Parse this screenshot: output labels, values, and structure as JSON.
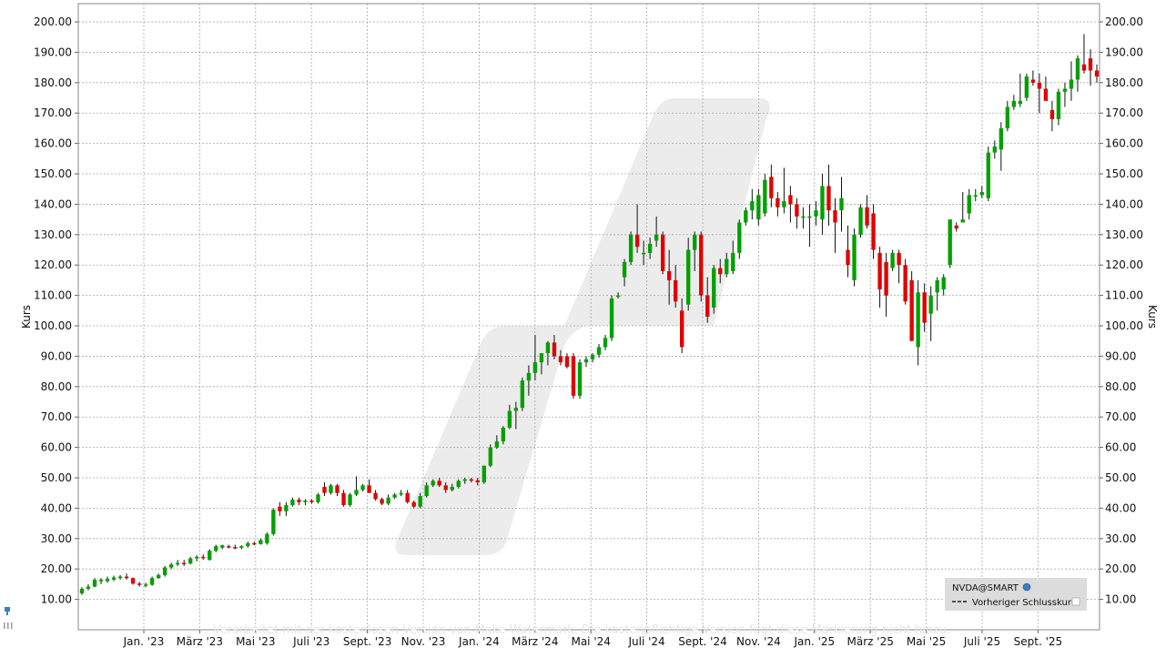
{
  "chart_data": {
    "type": "candlestick",
    "ylabel_left": "Kurs",
    "ylabel_right": "Kurs",
    "ylim": [
      0,
      206
    ],
    "grid": true,
    "y_ticks": [
      "10.00",
      "20.00",
      "30.00",
      "40.00",
      "50.00",
      "60.00",
      "70.00",
      "80.00",
      "90.00",
      "100.00",
      "110.00",
      "120.00",
      "130.00",
      "140.00",
      "150.00",
      "160.00",
      "170.00",
      "180.00",
      "190.00",
      "200.00"
    ],
    "x_ticks": [
      "Jan. '23",
      "März '23",
      "Mai '23",
      "Juli '23",
      "Sept. '23",
      "Nov. '23",
      "Jan. '24",
      "März '24",
      "Mai '24",
      "Juli '24",
      "Sept. '24",
      "Nov. '24",
      "Jan. '25",
      "März '25",
      "Mai '25",
      "Juli '25",
      "Sept. '25"
    ],
    "up_color": "#00a000",
    "down_color": "#e00000",
    "legend": {
      "position": "bottom-right",
      "symbol": "NVDA@SMART",
      "previous_close_label": "Vorheriger Schlusskurs"
    },
    "watermark": "Verarbeitet mit der kostenlosen Version von Make Watermark. Die kostenpflichtige Version fügt diese Markierung nicht hinzu.",
    "candles": [
      {
        "o": 12.0,
        "h": 14.0,
        "l": 11.5,
        "c": 13.5
      },
      {
        "o": 13.5,
        "h": 15.0,
        "l": 13.0,
        "c": 14.2
      },
      {
        "o": 14.2,
        "h": 17.0,
        "l": 14.0,
        "c": 16.5
      },
      {
        "o": 16.0,
        "h": 17.0,
        "l": 15.0,
        "c": 16.5
      },
      {
        "o": 16.0,
        "h": 17.5,
        "l": 15.5,
        "c": 16.8
      },
      {
        "o": 16.5,
        "h": 17.8,
        "l": 16.0,
        "c": 17.2
      },
      {
        "o": 17.0,
        "h": 18.0,
        "l": 16.5,
        "c": 17.5
      },
      {
        "o": 17.5,
        "h": 18.5,
        "l": 16.5,
        "c": 17.0
      },
      {
        "o": 17.0,
        "h": 17.2,
        "l": 14.8,
        "c": 15.2
      },
      {
        "o": 15.2,
        "h": 15.8,
        "l": 14.2,
        "c": 14.8
      },
      {
        "o": 14.8,
        "h": 15.5,
        "l": 14.0,
        "c": 14.9
      },
      {
        "o": 14.8,
        "h": 17.5,
        "l": 14.5,
        "c": 17.0
      },
      {
        "o": 17.0,
        "h": 18.5,
        "l": 16.8,
        "c": 18.0
      },
      {
        "o": 18.0,
        "h": 21.0,
        "l": 17.5,
        "c": 20.5
      },
      {
        "o": 20.5,
        "h": 22.0,
        "l": 20.0,
        "c": 21.5
      },
      {
        "o": 21.5,
        "h": 23.0,
        "l": 21.0,
        "c": 22.0
      },
      {
        "o": 22.0,
        "h": 23.0,
        "l": 21.0,
        "c": 21.8
      },
      {
        "o": 21.8,
        "h": 24.0,
        "l": 21.5,
        "c": 23.5
      },
      {
        "o": 23.5,
        "h": 24.5,
        "l": 22.5,
        "c": 24.0
      },
      {
        "o": 24.0,
        "h": 24.8,
        "l": 23.0,
        "c": 23.8
      },
      {
        "o": 23.0,
        "h": 26.5,
        "l": 22.8,
        "c": 26.0
      },
      {
        "o": 26.0,
        "h": 28.0,
        "l": 25.5,
        "c": 27.5
      },
      {
        "o": 27.0,
        "h": 28.0,
        "l": 26.5,
        "c": 27.8
      },
      {
        "o": 27.5,
        "h": 28.0,
        "l": 26.8,
        "c": 27.2
      },
      {
        "o": 27.2,
        "h": 28.0,
        "l": 26.5,
        "c": 27.0
      },
      {
        "o": 27.0,
        "h": 27.8,
        "l": 26.5,
        "c": 27.5
      },
      {
        "o": 27.5,
        "h": 29.0,
        "l": 27.0,
        "c": 28.5
      },
      {
        "o": 28.5,
        "h": 29.0,
        "l": 27.8,
        "c": 28.2
      },
      {
        "o": 28.2,
        "h": 30.0,
        "l": 28.0,
        "c": 29.5
      },
      {
        "o": 28.5,
        "h": 32.0,
        "l": 28.0,
        "c": 31.5
      },
      {
        "o": 31.5,
        "h": 40.0,
        "l": 31.0,
        "c": 39.5
      },
      {
        "o": 40.5,
        "h": 42.0,
        "l": 37.5,
        "c": 39.0
      },
      {
        "o": 39.0,
        "h": 42.0,
        "l": 37.5,
        "c": 41.0
      },
      {
        "o": 41.0,
        "h": 43.5,
        "l": 40.5,
        "c": 42.8
      },
      {
        "o": 42.8,
        "h": 43.5,
        "l": 41.0,
        "c": 42.0
      },
      {
        "o": 42.0,
        "h": 43.0,
        "l": 41.0,
        "c": 42.5
      },
      {
        "o": 42.5,
        "h": 43.0,
        "l": 41.5,
        "c": 42.0
      },
      {
        "o": 42.0,
        "h": 45.0,
        "l": 41.5,
        "c": 44.5
      },
      {
        "o": 47.0,
        "h": 48.5,
        "l": 44.0,
        "c": 45.0
      },
      {
        "o": 45.0,
        "h": 48.0,
        "l": 44.5,
        "c": 47.5
      },
      {
        "o": 47.5,
        "h": 48.0,
        "l": 44.0,
        "c": 45.0
      },
      {
        "o": 45.0,
        "h": 46.0,
        "l": 40.5,
        "c": 41.0
      },
      {
        "o": 41.0,
        "h": 45.0,
        "l": 40.5,
        "c": 44.5
      },
      {
        "o": 44.5,
        "h": 50.5,
        "l": 44.0,
        "c": 46.0
      },
      {
        "o": 46.0,
        "h": 48.0,
        "l": 45.5,
        "c": 47.5
      },
      {
        "o": 47.5,
        "h": 49.5,
        "l": 46.0,
        "c": 45.0
      },
      {
        "o": 45.0,
        "h": 46.0,
        "l": 42.5,
        "c": 43.0
      },
      {
        "o": 43.0,
        "h": 43.5,
        "l": 41.0,
        "c": 41.5
      },
      {
        "o": 41.5,
        "h": 44.5,
        "l": 41.0,
        "c": 43.5
      },
      {
        "o": 43.5,
        "h": 45.0,
        "l": 43.0,
        "c": 44.5
      },
      {
        "o": 44.5,
        "h": 46.0,
        "l": 44.0,
        "c": 45.0
      },
      {
        "o": 45.0,
        "h": 46.0,
        "l": 41.5,
        "c": 42.0
      },
      {
        "o": 42.0,
        "h": 42.5,
        "l": 40.0,
        "c": 40.5
      },
      {
        "o": 40.5,
        "h": 45.0,
        "l": 40.0,
        "c": 44.0
      },
      {
        "o": 44.0,
        "h": 48.5,
        "l": 43.5,
        "c": 47.5
      },
      {
        "o": 47.5,
        "h": 49.5,
        "l": 47.0,
        "c": 49.0
      },
      {
        "o": 49.0,
        "h": 50.0,
        "l": 47.0,
        "c": 47.5
      },
      {
        "o": 47.5,
        "h": 48.5,
        "l": 45.0,
        "c": 46.0
      },
      {
        "o": 46.0,
        "h": 48.0,
        "l": 45.5,
        "c": 47.0
      },
      {
        "o": 47.0,
        "h": 49.5,
        "l": 46.5,
        "c": 49.0
      },
      {
        "o": 49.0,
        "h": 50.0,
        "l": 48.0,
        "c": 49.5
      },
      {
        "o": 49.5,
        "h": 50.0,
        "l": 48.5,
        "c": 49.2
      },
      {
        "o": 49.2,
        "h": 50.0,
        "l": 47.5,
        "c": 48.5
      },
      {
        "o": 48.5,
        "h": 54.0,
        "l": 48.0,
        "c": 54.0
      },
      {
        "o": 54.0,
        "h": 61.0,
        "l": 53.5,
        "c": 60.0
      },
      {
        "o": 60.0,
        "h": 64.0,
        "l": 59.5,
        "c": 62.0
      },
      {
        "o": 62.0,
        "h": 67.0,
        "l": 61.0,
        "c": 66.5
      },
      {
        "o": 66.5,
        "h": 74.0,
        "l": 66.0,
        "c": 72.0
      },
      {
        "o": 72.0,
        "h": 75.0,
        "l": 66.0,
        "c": 73.0
      },
      {
        "o": 73.0,
        "h": 83.0,
        "l": 72.0,
        "c": 82.0
      },
      {
        "o": 82.0,
        "h": 87.0,
        "l": 77.0,
        "c": 84.5
      },
      {
        "o": 84.5,
        "h": 97.0,
        "l": 82.0,
        "c": 88.0
      },
      {
        "o": 88.0,
        "h": 90.0,
        "l": 84.0,
        "c": 91.0
      },
      {
        "o": 91.0,
        "h": 95.0,
        "l": 87.0,
        "c": 94.5
      },
      {
        "o": 94.5,
        "h": 97.0,
        "l": 89.0,
        "c": 90.0
      },
      {
        "o": 90.0,
        "h": 92.0,
        "l": 87.0,
        "c": 88.0
      },
      {
        "o": 90.0,
        "h": 91.0,
        "l": 86.0,
        "c": 86.5
      },
      {
        "o": 90.0,
        "h": 91.0,
        "l": 76.0,
        "c": 77.0
      },
      {
        "o": 77.0,
        "h": 89.0,
        "l": 76.0,
        "c": 88.0
      },
      {
        "o": 88.0,
        "h": 90.0,
        "l": 86.5,
        "c": 89.0
      },
      {
        "o": 89.0,
        "h": 91.0,
        "l": 88.0,
        "c": 90.5
      },
      {
        "o": 90.5,
        "h": 94.0,
        "l": 89.5,
        "c": 93.0
      },
      {
        "o": 93.0,
        "h": 97.0,
        "l": 92.0,
        "c": 96.0
      },
      {
        "o": 96.0,
        "h": 110.0,
        "l": 95.0,
        "c": 109.0
      },
      {
        "o": 110.0,
        "h": 111.0,
        "l": 109.0,
        "c": 110.0
      },
      {
        "o": 116.0,
        "h": 122.0,
        "l": 113.0,
        "c": 121.0
      },
      {
        "o": 121.0,
        "h": 131.0,
        "l": 120.0,
        "c": 130.0
      },
      {
        "o": 130.0,
        "h": 140.0,
        "l": 124.0,
        "c": 126.0
      },
      {
        "o": 124.0,
        "h": 128.0,
        "l": 120.0,
        "c": 124.0
      },
      {
        "o": 124.0,
        "h": 129.0,
        "l": 122.0,
        "c": 127.0
      },
      {
        "o": 128.0,
        "h": 136.0,
        "l": 126.0,
        "c": 130.0
      },
      {
        "o": 130.0,
        "h": 131.0,
        "l": 117.0,
        "c": 118.0
      },
      {
        "o": 118.0,
        "h": 125.0,
        "l": 107.0,
        "c": 115.0
      },
      {
        "o": 115.0,
        "h": 120.0,
        "l": 106.0,
        "c": 108.0
      },
      {
        "o": 105.0,
        "h": 109.0,
        "l": 91.0,
        "c": 93.0
      },
      {
        "o": 107.0,
        "h": 129.0,
        "l": 105.0,
        "c": 125.0
      },
      {
        "o": 125.0,
        "h": 131.0,
        "l": 118.0,
        "c": 130.0
      },
      {
        "o": 130.0,
        "h": 131.0,
        "l": 108.0,
        "c": 110.0
      },
      {
        "o": 110.0,
        "h": 116.0,
        "l": 101.0,
        "c": 103.0
      },
      {
        "o": 106.0,
        "h": 120.0,
        "l": 104.0,
        "c": 119.0
      },
      {
        "o": 119.0,
        "h": 122.0,
        "l": 114.0,
        "c": 117.0
      },
      {
        "o": 117.0,
        "h": 124.0,
        "l": 116.0,
        "c": 122.0
      },
      {
        "o": 118.0,
        "h": 128.0,
        "l": 117.0,
        "c": 124.0
      },
      {
        "o": 124.0,
        "h": 135.0,
        "l": 122.0,
        "c": 134.0
      },
      {
        "o": 134.0,
        "h": 139.0,
        "l": 133.0,
        "c": 138.0
      },
      {
        "o": 138.0,
        "h": 145.0,
        "l": 135.0,
        "c": 141.0
      },
      {
        "o": 135.0,
        "h": 145.0,
        "l": 133.0,
        "c": 143.0
      },
      {
        "o": 137.0,
        "h": 150.0,
        "l": 136.0,
        "c": 148.0
      },
      {
        "o": 149.0,
        "h": 153.0,
        "l": 139.0,
        "c": 142.0
      },
      {
        "o": 142.0,
        "h": 144.0,
        "l": 136.0,
        "c": 139.0
      },
      {
        "o": 139.0,
        "h": 152.0,
        "l": 137.0,
        "c": 141.0
      },
      {
        "o": 143.0,
        "h": 146.0,
        "l": 134.0,
        "c": 140.0
      },
      {
        "o": 140.0,
        "h": 142.0,
        "l": 132.0,
        "c": 136.0
      },
      {
        "o": 136.0,
        "h": 139.0,
        "l": 132.0,
        "c": 136.0
      },
      {
        "o": 136.0,
        "h": 140.0,
        "l": 126.0,
        "c": 136.0
      },
      {
        "o": 136.0,
        "h": 141.0,
        "l": 133.0,
        "c": 138.0
      },
      {
        "o": 135.0,
        "h": 150.0,
        "l": 130.0,
        "c": 146.0
      },
      {
        "o": 146.0,
        "h": 153.0,
        "l": 133.0,
        "c": 138.0
      },
      {
        "o": 138.0,
        "h": 142.0,
        "l": 124.0,
        "c": 134.0
      },
      {
        "o": 138.0,
        "h": 149.0,
        "l": 131.0,
        "c": 142.0
      },
      {
        "o": 125.0,
        "h": 133.0,
        "l": 116.0,
        "c": 120.0
      },
      {
        "o": 115.0,
        "h": 132.0,
        "l": 113.0,
        "c": 130.0
      },
      {
        "o": 130.0,
        "h": 140.0,
        "l": 129.0,
        "c": 139.0
      },
      {
        "o": 139.0,
        "h": 143.0,
        "l": 132.0,
        "c": 133.0
      },
      {
        "o": 137.0,
        "h": 140.0,
        "l": 122.0,
        "c": 125.0
      },
      {
        "o": 124.0,
        "h": 126.0,
        "l": 106.0,
        "c": 112.0
      },
      {
        "o": 121.0,
        "h": 124.0,
        "l": 103.0,
        "c": 110.0
      },
      {
        "o": 119.0,
        "h": 125.0,
        "l": 118.0,
        "c": 124.0
      },
      {
        "o": 124.0,
        "h": 125.0,
        "l": 114.0,
        "c": 120.0
      },
      {
        "o": 120.0,
        "h": 122.0,
        "l": 107.0,
        "c": 108.0
      },
      {
        "o": 115.0,
        "h": 118.0,
        "l": 95.0,
        "c": 95.0
      },
      {
        "o": 93.0,
        "h": 115.0,
        "l": 87.0,
        "c": 111.0
      },
      {
        "o": 111.0,
        "h": 114.0,
        "l": 98.0,
        "c": 101.0
      },
      {
        "o": 104.0,
        "h": 113.0,
        "l": 95.0,
        "c": 110.0
      },
      {
        "o": 111.0,
        "h": 116.0,
        "l": 105.0,
        "c": 115.0
      },
      {
        "o": 112.0,
        "h": 117.0,
        "l": 110.0,
        "c": 116.0
      },
      {
        "o": 120.0,
        "h": 135.0,
        "l": 119.0,
        "c": 135.0
      },
      {
        "o": 133.0,
        "h": 134.0,
        "l": 131.0,
        "c": 132.0
      },
      {
        "o": 134.0,
        "h": 144.0,
        "l": 134.0,
        "c": 135.0
      },
      {
        "o": 137.0,
        "h": 145.0,
        "l": 135.0,
        "c": 143.0
      },
      {
        "o": 143.0,
        "h": 145.0,
        "l": 141.0,
        "c": 143.0
      },
      {
        "o": 143.0,
        "h": 146.0,
        "l": 142.0,
        "c": 144.0
      },
      {
        "o": 142.0,
        "h": 159.0,
        "l": 141.0,
        "c": 157.0
      },
      {
        "o": 157.0,
        "h": 161.0,
        "l": 155.0,
        "c": 159.0
      },
      {
        "o": 158.0,
        "h": 167.0,
        "l": 151.0,
        "c": 165.0
      },
      {
        "o": 165.0,
        "h": 174.0,
        "l": 164.0,
        "c": 172.0
      },
      {
        "o": 172.0,
        "h": 176.0,
        "l": 171.0,
        "c": 174.0
      },
      {
        "o": 173.0,
        "h": 183.0,
        "l": 172.0,
        "c": 174.0
      },
      {
        "o": 175.0,
        "h": 183.0,
        "l": 174.0,
        "c": 182.0
      },
      {
        "o": 181.0,
        "h": 184.0,
        "l": 179.0,
        "c": 180.0
      },
      {
        "o": 180.0,
        "h": 183.0,
        "l": 170.0,
        "c": 178.0
      },
      {
        "o": 178.0,
        "h": 182.0,
        "l": 175.0,
        "c": 174.0
      },
      {
        "o": 171.0,
        "h": 174.0,
        "l": 164.0,
        "c": 168.0
      },
      {
        "o": 168.0,
        "h": 178.0,
        "l": 166.0,
        "c": 177.0
      },
      {
        "o": 177.0,
        "h": 180.0,
        "l": 172.0,
        "c": 178.0
      },
      {
        "o": 178.0,
        "h": 187.0,
        "l": 174.0,
        "c": 181.0
      },
      {
        "o": 181.0,
        "h": 189.0,
        "l": 177.0,
        "c": 188.0
      },
      {
        "o": 186.0,
        "h": 196.0,
        "l": 183.0,
        "c": 184.0
      },
      {
        "o": 188.0,
        "h": 191.0,
        "l": 179.0,
        "c": 184.0
      },
      {
        "o": 184.0,
        "h": 186.0,
        "l": 180.0,
        "c": 182.0
      }
    ]
  }
}
